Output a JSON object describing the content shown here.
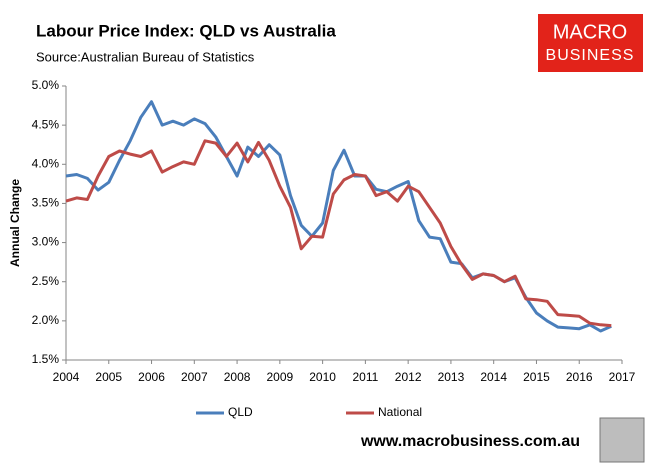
{
  "chart_data": {
    "type": "line",
    "title": "Labour Price Index: QLD vs Australia",
    "subtitle": "Source:Australian Bureau of Statistics",
    "ylabel": "Annual Change",
    "logo": [
      "MACRO",
      "BUSINESS"
    ],
    "footer": "www.macrobusiness.com.au",
    "x": [
      2004,
      2004.25,
      2004.5,
      2004.75,
      2005,
      2005.25,
      2005.5,
      2005.75,
      2006,
      2006.25,
      2006.5,
      2006.75,
      2007,
      2007.25,
      2007.5,
      2007.75,
      2008,
      2008.25,
      2008.5,
      2008.75,
      2009,
      2009.25,
      2009.5,
      2009.75,
      2010,
      2010.25,
      2010.5,
      2010.75,
      2011,
      2011.25,
      2011.5,
      2011.75,
      2012,
      2012.25,
      2012.5,
      2012.75,
      2013,
      2013.25,
      2013.5,
      2013.75,
      2014,
      2014.25,
      2014.5,
      2014.75,
      2015,
      2015.25,
      2015.5,
      2015.75,
      2016,
      2016.25,
      2016.5,
      2016.75
    ],
    "series": [
      {
        "name": "QLD",
        "color": "#4a7ebb",
        "values": [
          3.85,
          3.87,
          3.82,
          3.67,
          3.77,
          4.05,
          4.3,
          4.6,
          4.8,
          4.5,
          4.55,
          4.5,
          4.58,
          4.52,
          4.35,
          4.1,
          3.85,
          4.22,
          4.1,
          4.25,
          4.12,
          3.6,
          3.22,
          3.08,
          3.25,
          3.92,
          4.18,
          3.85,
          3.85,
          3.68,
          3.65,
          3.72,
          3.78,
          3.28,
          3.07,
          3.05,
          2.75,
          2.73,
          2.55,
          2.6,
          2.58,
          2.5,
          2.55,
          2.3,
          2.1,
          2.0,
          1.92,
          1.91,
          1.9,
          1.95,
          1.87,
          1.93
        ]
      },
      {
        "name": "National",
        "color": "#be4b48",
        "values": [
          3.53,
          3.57,
          3.55,
          3.85,
          4.1,
          4.17,
          4.13,
          4.1,
          4.17,
          3.9,
          3.97,
          4.03,
          4.0,
          4.3,
          4.27,
          4.1,
          4.27,
          4.03,
          4.28,
          4.05,
          3.72,
          3.45,
          2.92,
          3.08,
          3.07,
          3.62,
          3.8,
          3.87,
          3.85,
          3.6,
          3.65,
          3.53,
          3.72,
          3.65,
          3.45,
          3.25,
          2.95,
          2.72,
          2.53,
          2.6,
          2.58,
          2.5,
          2.57,
          2.28,
          2.27,
          2.25,
          2.08,
          2.07,
          2.06,
          1.97,
          1.95,
          1.94
        ]
      }
    ],
    "xlim": [
      2004,
      2017
    ],
    "xticks": [
      2004,
      2005,
      2006,
      2007,
      2008,
      2009,
      2010,
      2011,
      2012,
      2013,
      2014,
      2015,
      2016,
      2017
    ],
    "ylim": [
      1.5,
      5.0
    ],
    "yticks": [
      {
        "value": 1.5,
        "label": "1.5%"
      },
      {
        "value": 2.0,
        "label": "2.0%"
      },
      {
        "value": 2.5,
        "label": "2.5%"
      },
      {
        "value": 3.0,
        "label": "3.0%"
      },
      {
        "value": 3.5,
        "label": "3.5%"
      },
      {
        "value": 4.0,
        "label": "4.0%"
      },
      {
        "value": 4.5,
        "label": "4.5%"
      },
      {
        "value": 5.0,
        "label": "5.0%"
      }
    ],
    "grid": false,
    "legend": "bottom"
  }
}
